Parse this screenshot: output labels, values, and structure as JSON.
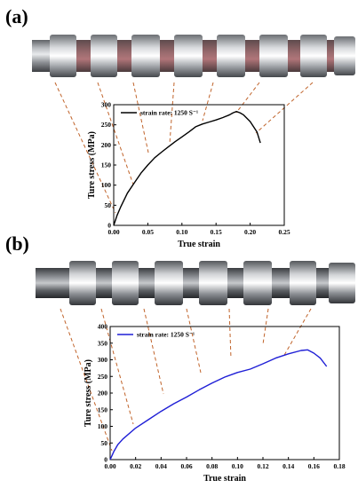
{
  "panels": [
    {
      "label": "(a)"
    },
    {
      "label": "(b)"
    }
  ],
  "chart_data": [
    {
      "type": "line",
      "xlabel": "True strain",
      "ylabel": "Ture stress (MPa)",
      "xlim": [
        0.0,
        0.25
      ],
      "ylim": [
        0,
        300
      ],
      "xticks": [
        "0.00",
        "0.05",
        "0.10",
        "0.15",
        "0.20",
        "0.25"
      ],
      "yticks": [
        "0",
        "50",
        "100",
        "150",
        "200",
        "250",
        "300"
      ],
      "grid": false,
      "legend_position": "top-left",
      "series": [
        {
          "name": "strain rate: 1250 S⁻¹",
          "color": "#000000",
          "x": [
            0.0,
            0.005,
            0.01,
            0.02,
            0.03,
            0.04,
            0.05,
            0.06,
            0.07,
            0.08,
            0.09,
            0.1,
            0.11,
            0.12,
            0.13,
            0.14,
            0.15,
            0.16,
            0.17,
            0.175,
            0.18,
            0.185,
            0.19,
            0.2,
            0.21,
            0.215
          ],
          "y": [
            0,
            25,
            45,
            80,
            105,
            130,
            150,
            168,
            182,
            195,
            208,
            220,
            232,
            245,
            252,
            257,
            262,
            268,
            275,
            280,
            283,
            280,
            275,
            258,
            232,
            205
          ]
        }
      ]
    },
    {
      "type": "line",
      "xlabel": "True strain",
      "ylabel": "Ture stress (MPa)",
      "xlim": [
        0.0,
        0.18
      ],
      "ylim": [
        0,
        400
      ],
      "xticks": [
        "0.00",
        "0.02",
        "0.04",
        "0.06",
        "0.08",
        "0.10",
        "0.12",
        "0.14",
        "0.16",
        "0.18"
      ],
      "yticks": [
        "0",
        "50",
        "100",
        "150",
        "200",
        "250",
        "300",
        "350",
        "400"
      ],
      "grid": false,
      "legend_position": "top-left",
      "series": [
        {
          "name": "strain rate: 1250 S⁻¹",
          "color": "#1f1fd6",
          "x": [
            0.0,
            0.003,
            0.006,
            0.01,
            0.02,
            0.03,
            0.04,
            0.05,
            0.06,
            0.07,
            0.08,
            0.09,
            0.1,
            0.11,
            0.12,
            0.13,
            0.14,
            0.15,
            0.155,
            0.16,
            0.165,
            0.17
          ],
          "y": [
            0,
            25,
            45,
            62,
            95,
            120,
            145,
            168,
            188,
            210,
            230,
            248,
            262,
            272,
            288,
            305,
            318,
            328,
            330,
            320,
            305,
            280
          ]
        }
      ]
    }
  ]
}
